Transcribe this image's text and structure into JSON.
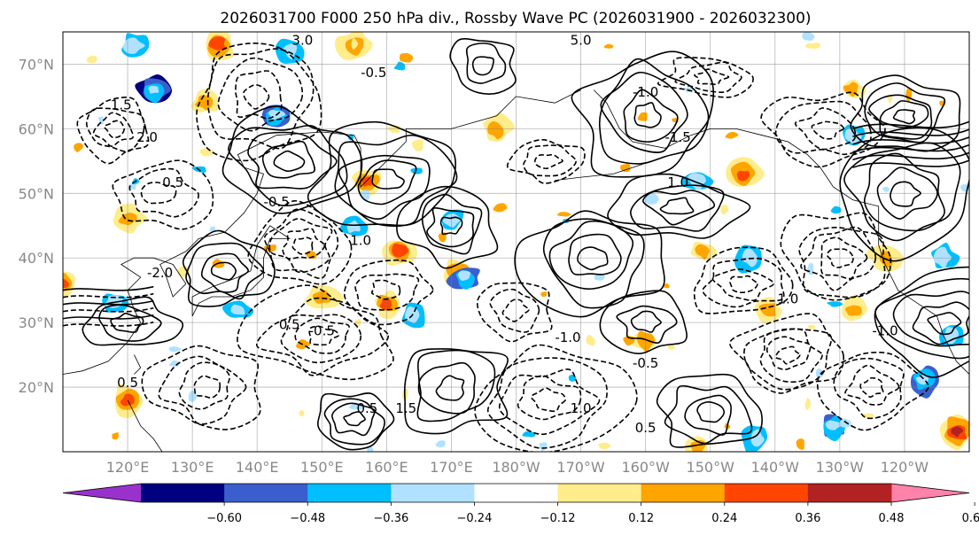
{
  "chart_data": {
    "type": "contour-map",
    "title": "2026031700 F000 250 hPa div., Rossby Wave PC (2026031900 - 2026032300)",
    "xlabel": "",
    "ylabel": "",
    "lat_ticks": [
      "70°N",
      "60°N",
      "50°N",
      "40°N",
      "30°N",
      "20°N"
    ],
    "lat_values": [
      70,
      60,
      50,
      40,
      30,
      20
    ],
    "lat_range": [
      10,
      75
    ],
    "lon_ticks": [
      "120°E",
      "130°E",
      "140°E",
      "150°E",
      "160°E",
      "170°E",
      "180°W",
      "170°W",
      "160°W",
      "150°W",
      "140°W",
      "130°W",
      "120°W"
    ],
    "lon_range": [
      110,
      250
    ],
    "colorbar": {
      "ticks": [
        "−0.60",
        "−0.48",
        "−0.36",
        "−0.24",
        "−0.12",
        "0.12",
        "0.24",
        "0.36",
        "0.48",
        "0.60"
      ],
      "tick_values": [
        -0.6,
        -0.48,
        -0.36,
        -0.24,
        -0.12,
        0.12,
        0.24,
        0.36,
        0.48,
        0.6
      ],
      "colors": [
        "#9932cc",
        "#000080",
        "#3a5fcd",
        "#00bfff",
        "#b0e2ff",
        "#ffffff",
        "#ffec8b",
        "#ffa500",
        "#ff4500",
        "#b22222",
        "#ff82ab"
      ],
      "extend": "both"
    },
    "contour_labels": [
      "3.0",
      "5.0",
      "-0.5",
      "1.5",
      "-1.0",
      "2.0",
      "0.5",
      "-1.5",
      "1.0",
      "-2.0",
      "0.5",
      "-0.5",
      "1.0",
      "-1.0",
      "1.5",
      "0.5",
      "-0.5",
      "1.0",
      "0.5",
      "-0.5",
      "-1.0",
      "1.0",
      "0.5"
    ],
    "divergence_positive_areas": [
      {
        "lon": 162,
        "lat": 41,
        "value": 0.4
      },
      {
        "lon": 160,
        "lat": 33,
        "value": 0.38
      },
      {
        "lon": 157,
        "lat": 52,
        "value": 0.36
      },
      {
        "lon": 215,
        "lat": 53,
        "value": 0.42
      },
      {
        "lon": 200,
        "lat": 27,
        "value": 0.3
      },
      {
        "lon": 120,
        "lat": 18,
        "value": 0.45
      },
      {
        "lon": 150,
        "lat": 34,
        "value": 0.32
      },
      {
        "lon": 110,
        "lat": 36,
        "value": 0.36
      },
      {
        "lon": 134,
        "lat": 73,
        "value": 0.4
      },
      {
        "lon": 171,
        "lat": 38,
        "value": 0.3
      },
      {
        "lon": 232,
        "lat": 66,
        "value": 0.28
      },
      {
        "lon": 209,
        "lat": 41,
        "value": 0.28
      },
      {
        "lon": 232,
        "lat": 32,
        "value": 0.25
      },
      {
        "lon": 219,
        "lat": 32,
        "value": 0.26
      },
      {
        "lon": 248,
        "lat": 13,
        "value": 0.48
      },
      {
        "lon": 120,
        "lat": 46,
        "value": 0.3
      },
      {
        "lon": 177,
        "lat": 60,
        "value": 0.26
      },
      {
        "lon": 208,
        "lat": 11,
        "value": 0.3
      },
      {
        "lon": 155,
        "lat": 73,
        "value": 0.3
      },
      {
        "lon": 237,
        "lat": 40,
        "value": 0.28
      },
      {
        "lon": 132,
        "lat": 64,
        "value": 0.24
      }
    ],
    "divergence_negative_areas": [
      {
        "lon": 124,
        "lat": 66,
        "value": -0.5
      },
      {
        "lon": 143,
        "lat": 62,
        "value": -0.4
      },
      {
        "lon": 172,
        "lat": 37,
        "value": -0.38
      },
      {
        "lon": 170,
        "lat": 46,
        "value": -0.3
      },
      {
        "lon": 164,
        "lat": 31,
        "value": -0.3
      },
      {
        "lon": 243,
        "lat": 21,
        "value": -0.42
      },
      {
        "lon": 229,
        "lat": 14,
        "value": -0.36
      },
      {
        "lon": 121,
        "lat": 73,
        "value": -0.3
      },
      {
        "lon": 232,
        "lat": 59,
        "value": -0.28
      },
      {
        "lon": 208,
        "lat": 52,
        "value": -0.28
      },
      {
        "lon": 145,
        "lat": 72,
        "value": -0.25
      },
      {
        "lon": 155,
        "lat": 45,
        "value": -0.3
      },
      {
        "lon": 118,
        "lat": 33,
        "value": -0.26
      },
      {
        "lon": 247,
        "lat": 28,
        "value": -0.28
      },
      {
        "lon": 216,
        "lat": 40,
        "value": -0.26
      },
      {
        "lon": 217,
        "lat": 12,
        "value": -0.3
      },
      {
        "lon": 137,
        "lat": 32,
        "value": -0.24
      },
      {
        "lon": 246,
        "lat": 40,
        "value": -0.26
      }
    ]
  }
}
